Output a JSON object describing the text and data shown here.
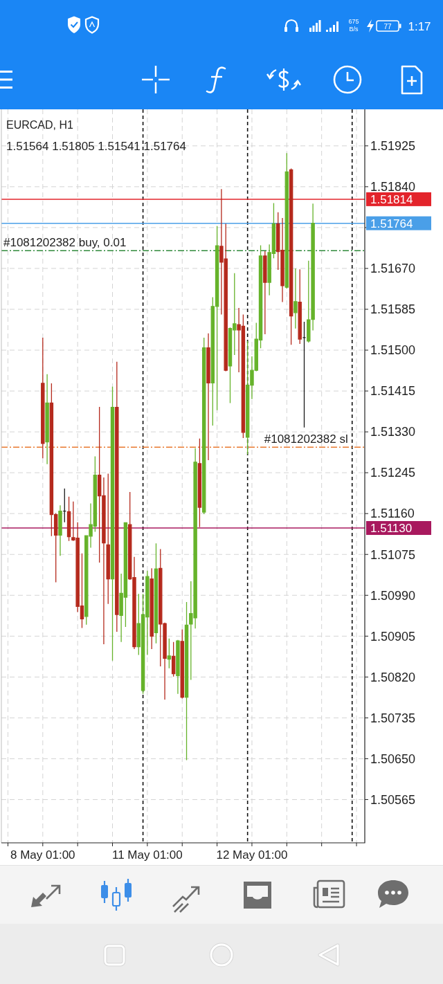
{
  "chart_data": {
    "type": "candlestick",
    "title": "EURCAD, H1",
    "subtitle": "1.51564 1.51805 1.51541 1.51764",
    "annotations": [
      "1:17",
      "77",
      "675",
      "B/s"
    ],
    "categories": [
      "8 May 01:00",
      null,
      null,
      null,
      null,
      null,
      null,
      null,
      null,
      null,
      null,
      null,
      null,
      null,
      null,
      null,
      null,
      null,
      null,
      null,
      null,
      null,
      null,
      null,
      "11 May 01:00",
      null,
      null,
      null,
      null,
      null,
      null,
      null,
      null,
      null,
      null,
      null,
      null,
      null,
      null,
      null,
      null,
      null,
      null,
      null,
      null,
      null,
      null,
      null,
      "12 May 01:00",
      null,
      null,
      null,
      null,
      null,
      null,
      null,
      null,
      null,
      null,
      null,
      null,
      null,
      null
    ],
    "ohlc": [
      [
        1.51431,
        1.51526,
        1.51275,
        1.51306
      ],
      [
        1.51309,
        1.5145,
        1.51263,
        1.5139
      ],
      [
        1.5139,
        1.51431,
        1.51113,
        1.51158
      ],
      [
        1.51158,
        1.51161,
        1.51017,
        1.51115
      ],
      [
        1.51115,
        1.51177,
        1.51072,
        1.51165
      ],
      [
        1.51165,
        1.51212,
        1.51142,
        1.51165
      ],
      [
        1.51164,
        1.51195,
        1.51103,
        1.51112
      ],
      [
        1.5111,
        1.51185,
        1.51103,
        1.51105
      ],
      [
        1.51109,
        1.51142,
        1.50955,
        1.50967
      ],
      [
        1.50968,
        1.51077,
        1.50922,
        1.50941
      ],
      [
        1.50946,
        1.51115,
        1.50929,
        1.51114
      ],
      [
        1.51113,
        1.51181,
        1.51089,
        1.51137
      ],
      [
        1.51134,
        1.51279,
        1.51122,
        1.5124
      ],
      [
        1.5124,
        1.51382,
        1.51058,
        1.51197
      ],
      [
        1.51197,
        1.51235,
        1.50888,
        1.51099
      ],
      [
        1.51095,
        1.51243,
        1.50972,
        1.51024
      ],
      [
        1.51024,
        1.51424,
        1.50854,
        1.51381
      ],
      [
        1.51381,
        1.51476,
        1.50914,
        1.5095
      ],
      [
        1.50948,
        1.51035,
        1.50893,
        1.50994
      ],
      [
        1.50986,
        1.51142,
        1.50924,
        1.51141
      ],
      [
        1.51137,
        1.51205,
        1.51022,
        1.51024
      ],
      [
        1.51027,
        1.5107,
        1.50878,
        1.50883
      ],
      [
        1.50883,
        1.50993,
        1.50866,
        1.50931
      ],
      [
        1.50792,
        1.50993,
        1.50785,
        1.5095
      ],
      [
        1.50945,
        1.51041,
        1.50866,
        1.51029
      ],
      [
        1.51024,
        1.51046,
        1.50878,
        1.50905
      ],
      [
        1.50912,
        1.51098,
        1.5089,
        1.51045
      ],
      [
        1.51046,
        1.51086,
        1.50842,
        1.5093
      ],
      [
        1.50931,
        1.50933,
        1.50773,
        1.50859
      ],
      [
        1.50857,
        1.509,
        1.50838,
        1.50864
      ],
      [
        1.50863,
        1.50893,
        1.50821,
        1.50827
      ],
      [
        1.50823,
        1.50897,
        1.50785,
        1.50895
      ],
      [
        1.50894,
        1.50919,
        1.50775,
        1.50778
      ],
      [
        1.50778,
        1.50976,
        1.50647,
        1.50928
      ],
      [
        1.5093,
        1.51019,
        1.50814,
        1.50952
      ],
      [
        1.50943,
        1.51296,
        1.50921,
        1.51267
      ],
      [
        1.51264,
        1.51316,
        1.51132,
        1.51173
      ],
      [
        1.51163,
        1.51526,
        1.51159,
        1.51505
      ],
      [
        1.51505,
        1.51535,
        1.51271,
        1.51432
      ],
      [
        1.51432,
        1.5161,
        1.51343,
        1.51591
      ],
      [
        1.51591,
        1.51758,
        1.51375,
        1.51717
      ],
      [
        1.51716,
        1.51835,
        1.51574,
        1.51683
      ],
      [
        1.5169,
        1.51763,
        1.51456,
        1.51458
      ],
      [
        1.51467,
        1.51547,
        1.5139,
        1.51545
      ],
      [
        1.51542,
        1.5166,
        1.5149,
        1.51555
      ],
      [
        1.51553,
        1.51588,
        1.51454,
        1.51542
      ],
      [
        1.5155,
        1.51574,
        1.51317,
        1.51329
      ],
      [
        1.51319,
        1.51519,
        1.51283,
        1.51427
      ],
      [
        1.51427,
        1.51487,
        1.51398,
        1.51458
      ],
      [
        1.51458,
        1.51557,
        1.51456,
        1.51523
      ],
      [
        1.51521,
        1.51718,
        1.51504,
        1.51696
      ],
      [
        1.51696,
        1.51706,
        1.51533,
        1.51641
      ],
      [
        1.51641,
        1.5172,
        1.51614,
        1.51703
      ],
      [
        1.51701,
        1.51806,
        1.51691,
        1.51763
      ],
      [
        1.51763,
        1.51787,
        1.51667,
        1.51705
      ],
      [
        1.51708,
        1.51775,
        1.516,
        1.51634
      ],
      [
        1.51631,
        1.5191,
        1.51628,
        1.51871
      ],
      [
        1.51875,
        1.51878,
        1.51511,
        1.51571
      ],
      [
        1.51578,
        1.5167,
        1.51545,
        1.51601
      ],
      [
        1.516,
        1.51668,
        1.51513,
        1.51523
      ],
      [
        1.51526,
        1.51559,
        1.51339,
        1.51526
      ],
      [
        1.51519,
        1.51686,
        1.51516,
        1.51563
      ],
      [
        1.51564,
        1.51805,
        1.51541,
        1.51764
      ]
    ],
    "colors": [
      "#b52a1d",
      "#66b32b",
      "#b52a1d",
      "#b52a1d",
      "#66b32b",
      "#1a1a1a",
      "#b52a1d",
      "#b52a1d",
      "#b52a1d",
      "#b52a1d",
      "#66b32b",
      "#66b32b",
      "#66b32b",
      "#b52a1d",
      "#b52a1d",
      "#b52a1d",
      "#66b32b",
      "#b52a1d",
      "#66b32b",
      "#66b32b",
      "#b52a1d",
      "#b52a1d",
      "#66b32b",
      "#66b32b",
      "#66b32b",
      "#b52a1d",
      "#66b32b",
      "#b52a1d",
      "#b52a1d",
      "#66b32b",
      "#b52a1d",
      "#66b32b",
      "#b52a1d",
      "#66b32b",
      "#66b32b",
      "#66b32b",
      "#b52a1d",
      "#66b32b",
      "#b52a1d",
      "#66b32b",
      "#66b32b",
      "#b52a1d",
      "#b52a1d",
      "#66b32b",
      "#66b32b",
      "#b52a1d",
      "#b52a1d",
      "#66b32b",
      "#66b32b",
      "#66b32b",
      "#66b32b",
      "#b52a1d",
      "#66b32b",
      "#66b32b",
      "#b52a1d",
      "#b52a1d",
      "#66b32b",
      "#b52a1d",
      "#66b32b",
      "#b52a1d",
      "#1a1a1a",
      "#66b32b",
      "#66b32b"
    ],
    "ylim": [
      1.50475,
      1.52001
    ],
    "yticks": [
      1.50565,
      {
        "value": 1.5065,
        "label": "1.50650"
      },
      1.50735,
      {
        "value": 1.5082,
        "label": "1.50820"
      },
      1.50905,
      {
        "value": 1.5099,
        "label": "1.50990"
      },
      1.51075,
      {
        "value": 1.5116,
        "label": "1.51160"
      },
      1.51245,
      {
        "value": 1.5133,
        "label": "1.51330"
      },
      1.51415,
      {
        "value": 1.515,
        "label": "1.51500"
      },
      1.51585,
      {
        "value": 1.5167,
        "label": "1.51670"
      },
      {
        "value": 1.51755,
        "label": null
      },
      {
        "value": 1.5184,
        "label": "1.51840"
      },
      1.51925
    ],
    "grid": true,
    "ref_lines": [
      {
        "axis": "y",
        "value": 1.51814,
        "label": "1.51814",
        "color": "#e3242b",
        "line_style": "solid"
      },
      {
        "axis": "y",
        "value": 1.51764,
        "label": "1.51764",
        "color": "#4a9fe8",
        "line_style": "solid"
      },
      {
        "axis": "y",
        "value": 1.51707,
        "label": "#1081202382 buy, 0.01",
        "color": "#2f8a3a",
        "line_style": "dashed"
      },
      {
        "axis": "y",
        "value": 1.51298,
        "label": "#1081202382 sl",
        "color": "#e8782e",
        "line_style": "dashed"
      },
      {
        "axis": "y",
        "value": 1.5113,
        "label": "1.51130",
        "color": "#a8195e",
        "line_style": "solid"
      }
    ]
  }
}
